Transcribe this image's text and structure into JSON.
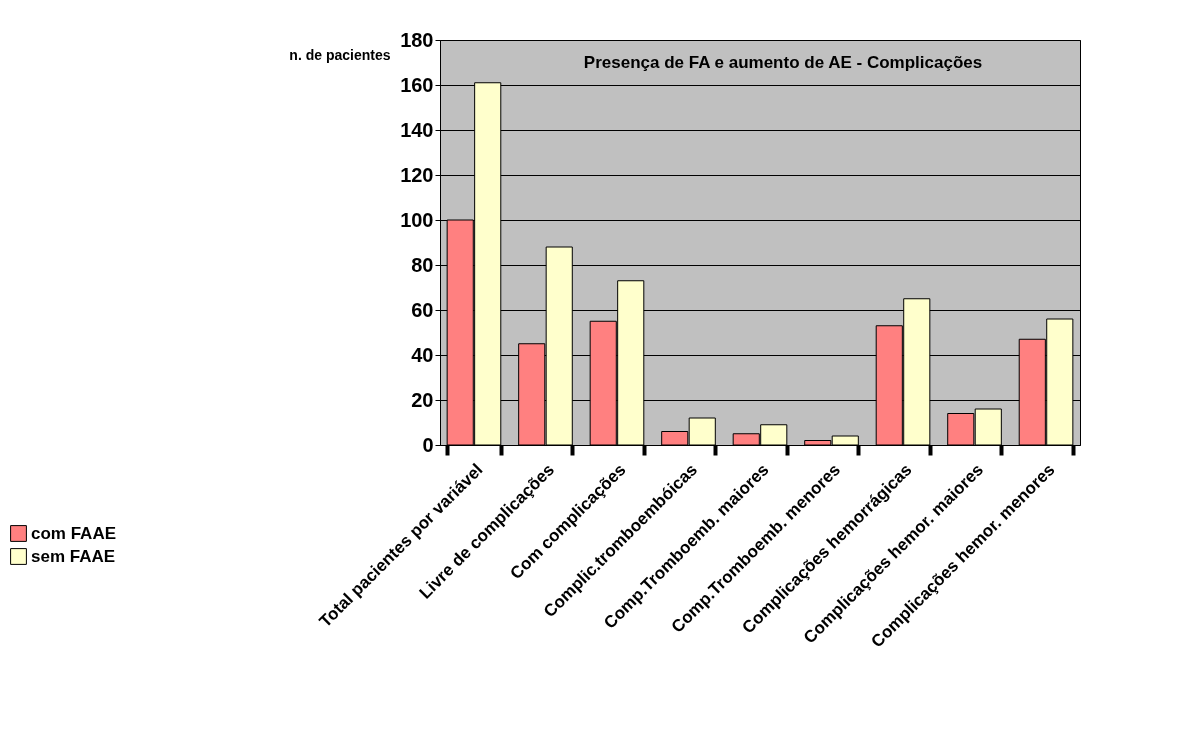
{
  "chart_data": {
    "type": "bar",
    "title": "Presença de FA e aumento de AE - Complicações",
    "ylabel": "n. de pacientes",
    "categories": [
      "Total pacientes por variável",
      "Livre de complicações",
      "Com complicações",
      "Complic.tromboembóicas",
      "Comp.Tromboemb. maiores",
      "Comp.Tromboemb. menores",
      "Complicações hemorrágicas",
      "Complicações hemor. maiores",
      "Complicações hemor. menores"
    ],
    "series": [
      {
        "name": "com FAAE",
        "color": "#ff8080",
        "values": [
          100,
          45,
          55,
          6,
          5,
          2,
          53,
          14,
          47
        ]
      },
      {
        "name": "sem FAAE",
        "color": "#ffffcc",
        "values": [
          161,
          88,
          73,
          12,
          9,
          4,
          65,
          16,
          56
        ]
      }
    ],
    "ylim": [
      0,
      180
    ],
    "yticks": [
      0,
      20,
      40,
      60,
      80,
      100,
      120,
      140,
      160,
      180
    ],
    "grid": "y",
    "legend": "left"
  }
}
